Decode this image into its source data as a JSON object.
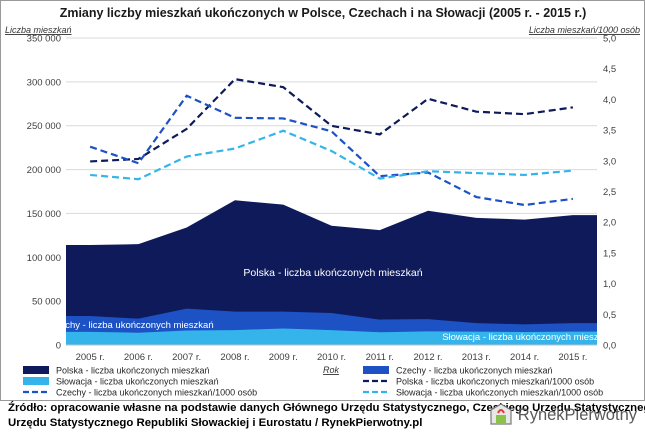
{
  "chart_data": {
    "type": "area",
    "title": "Zmiany liczby mieszkań ukończonych w Polsce, Czechach i na Słowacji (2005 r. - 2015 r.)",
    "xlabel": "Rok",
    "ylabel_left": "Liczba mieszkań",
    "ylabel_right": "Liczba mieszkań/1000 osób",
    "categories": [
      "2005 r.",
      "2006 r.",
      "2007 r.",
      "2008 r.",
      "2009 r.",
      "2010 r.",
      "2011 r.",
      "2012 r.",
      "2013 r.",
      "2014 r.",
      "2015 r."
    ],
    "ylim_left": [
      0,
      350000
    ],
    "ylim_right": [
      0,
      5.0
    ],
    "y_ticks_left": [
      "0",
      "50 000",
      "100 000",
      "150 000",
      "200 000",
      "250 000",
      "300 000",
      "350 000"
    ],
    "y_ticks_right": [
      "0,0",
      "0,5",
      "1,0",
      "1,5",
      "2,0",
      "2,5",
      "3,0",
      "3,5",
      "4,0",
      "4,5",
      "5,0"
    ],
    "area_series": [
      {
        "name": "Polska - liczba ukończonych mieszkań",
        "color": "#0e1a5a",
        "values": [
          114000,
          115000,
          134000,
          165000,
          160000,
          136000,
          131000,
          153000,
          145000,
          143000,
          148000
        ]
      },
      {
        "name": "Czechy - liczba ukończonych mieszkań",
        "color": "#1d52c4",
        "values": [
          33000,
          30000,
          41500,
          38000,
          38000,
          36500,
          29000,
          29500,
          25000,
          23500,
          25000
        ]
      },
      {
        "name": "Słowacja - liczba ukończonych mieszkań",
        "color": "#35b4ec",
        "values": [
          15000,
          14000,
          16500,
          17000,
          18800,
          17000,
          14500,
          15500,
          15300,
          14800,
          15300
        ]
      }
    ],
    "line_series": [
      {
        "name": "Polska - liczba ukończonych mieszkań/1000 osób",
        "color": "#0e1a5a",
        "values": [
          2.99,
          3.03,
          3.52,
          4.33,
          4.2,
          3.57,
          3.43,
          4.01,
          3.8,
          3.76,
          3.87
        ]
      },
      {
        "name": "Czechy - liczba ukończonych mieszkań/1000 osób",
        "color": "#1d52c4",
        "values": [
          3.23,
          2.96,
          4.06,
          3.7,
          3.69,
          3.48,
          2.75,
          2.81,
          2.41,
          2.28,
          2.38
        ]
      },
      {
        "name": "Słowacja - liczba ukończonych mieszkań/1000 osób",
        "color": "#35b4ec",
        "values": [
          2.77,
          2.7,
          3.07,
          3.2,
          3.49,
          3.16,
          2.71,
          2.83,
          2.8,
          2.77,
          2.84
        ]
      }
    ],
    "area_labels": [
      "Polska - liczba ukończonych mieszkań",
      "Czechy - liczba ukończonych mieszkań",
      "Słowacja - liczba ukończonych mieszkań"
    ],
    "legend": [
      "Polska - liczba ukończonych mieszkań",
      "Czechy - liczba ukończonych mieszkań",
      "Słowacja - liczba ukończonych mieszkań",
      "Polska - liczba ukończonych mieszkań/1000 osób",
      "Czechy - liczba ukończonych mieszkań/1000 osób",
      "Słowacja - liczba ukończonych mieszkań/1000 osób"
    ],
    "legend_position": "bottom",
    "grid": true
  },
  "source": {
    "line1": "Źródło: opracowanie własne na podstawie danych Głównego Urzędu Statystycznego, Czeskiego Urzędu Statystycznego,",
    "line2": "Urzędu Statystycznego Republiki Słowackiej i Eurostatu / RynekPierwotny.pl"
  },
  "logo": {
    "text": "RynekPierwotny"
  }
}
